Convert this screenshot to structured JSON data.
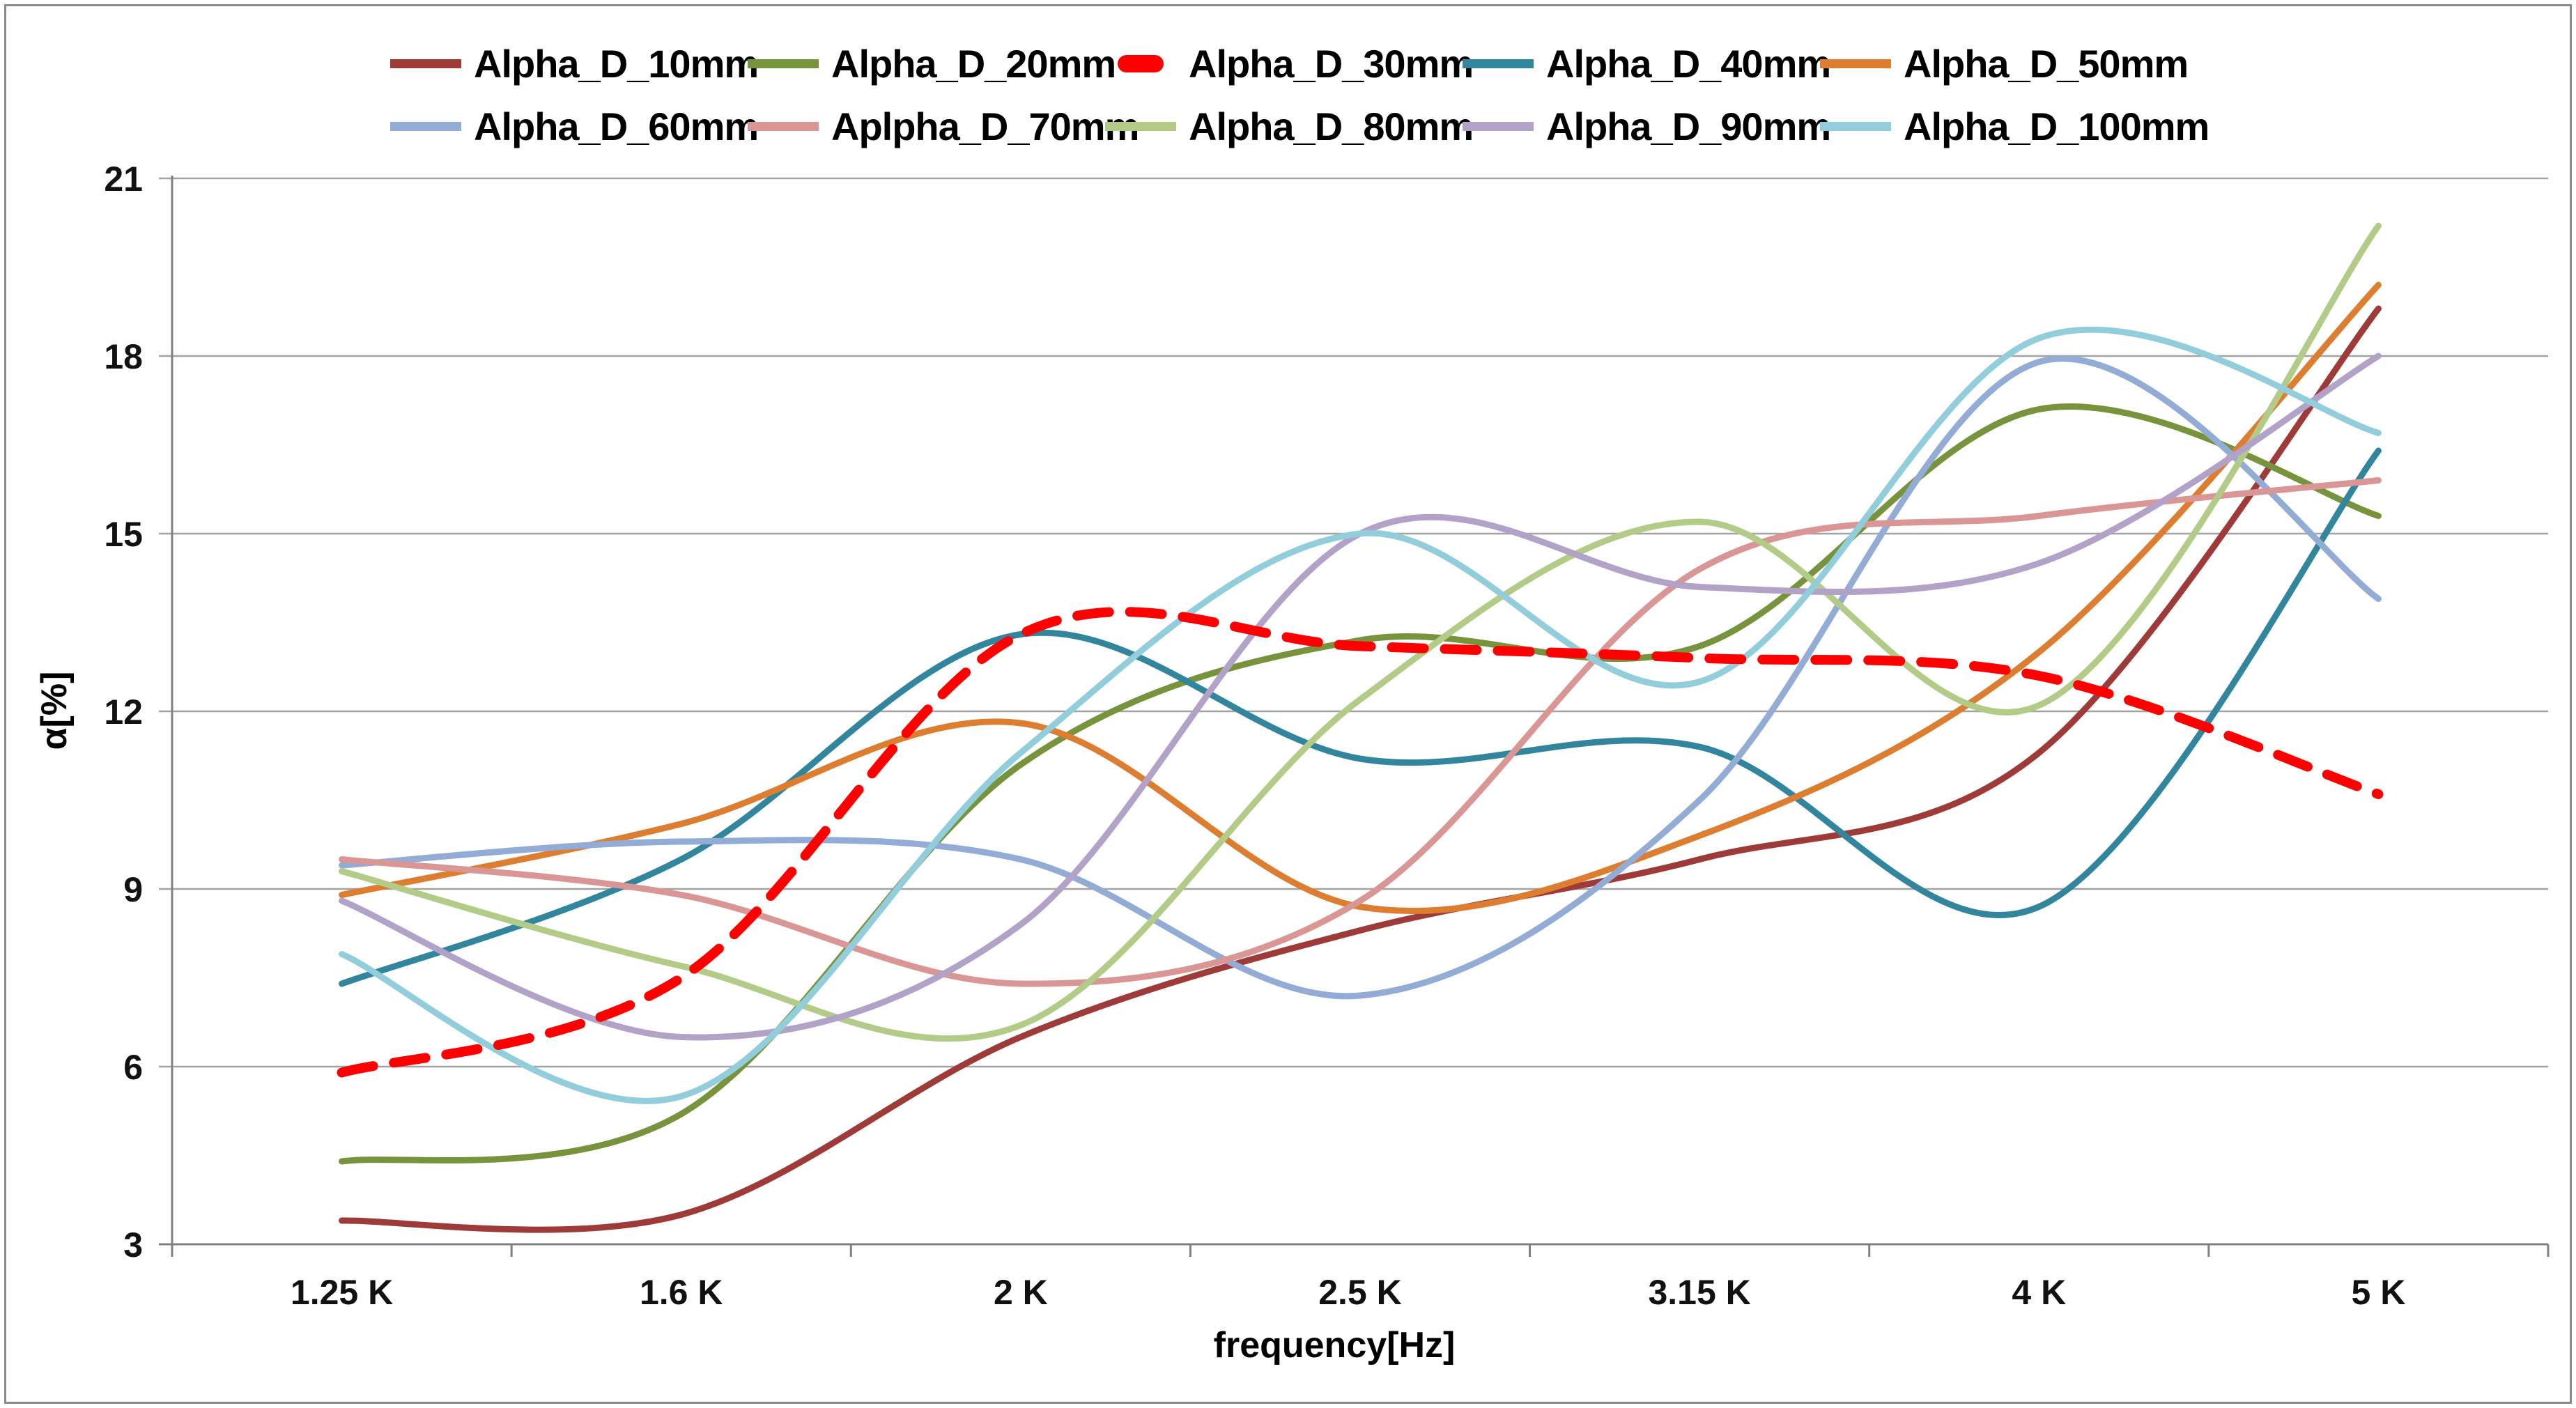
{
  "chart_data": {
    "type": "line",
    "title": "",
    "xlabel": "frequency[Hz]",
    "ylabel": "α[%]",
    "categories": [
      "1.25 K",
      "1.6 K",
      "2 K",
      "2.5 K",
      "3.15 K",
      "4 K",
      "5 K"
    ],
    "yticks": [
      3,
      6,
      9,
      12,
      15,
      18,
      21
    ],
    "ylim": [
      3,
      21
    ],
    "grid": "horizontal",
    "legend_position": "top-two-rows",
    "line_style_note": "smoothed curves; Alpha_D_30mm drawn as thick red dashes",
    "series": [
      {
        "name": "Alpha_D_10mm",
        "color": "#9E3B38",
        "style": "solid",
        "values": [
          3.4,
          3.5,
          6.5,
          8.3,
          9.5,
          11.3,
          18.8
        ]
      },
      {
        "name": "Alpha_D_20mm",
        "color": "#77933C",
        "style": "solid",
        "values": [
          4.4,
          5.2,
          11.1,
          13.2,
          13.1,
          17.1,
          15.3
        ]
      },
      {
        "name": "Alpha_D_30mm",
        "color": "#FF0000",
        "style": "dashed",
        "values": [
          5.9,
          7.5,
          13.3,
          13.1,
          12.9,
          12.6,
          10.6
        ]
      },
      {
        "name": "Alpha_D_40mm",
        "color": "#31859C",
        "style": "solid",
        "values": [
          7.4,
          9.5,
          13.3,
          11.2,
          11.4,
          8.7,
          16.4
        ]
      },
      {
        "name": "Alpha_D_50mm",
        "color": "#DC7D2F",
        "style": "solid",
        "values": [
          8.9,
          10.1,
          11.8,
          8.7,
          9.9,
          13.0,
          19.2
        ]
      },
      {
        "name": "Alpha_D_60mm",
        "color": "#92ACD5",
        "style": "solid",
        "values": [
          9.4,
          9.8,
          9.5,
          7.2,
          10.5,
          17.9,
          13.9
        ]
      },
      {
        "name": "Aplpha_D_70mm",
        "color": "#D99694",
        "style": "solid",
        "values": [
          9.5,
          8.9,
          7.4,
          8.8,
          14.4,
          15.3,
          15.9
        ]
      },
      {
        "name": "Alpha_D_80mm",
        "color": "#B2CB87",
        "style": "solid",
        "values": [
          9.3,
          7.7,
          6.7,
          12.2,
          15.2,
          12.1,
          20.2
        ]
      },
      {
        "name": "Alpha_D_90mm",
        "color": "#B2A2C7",
        "style": "solid",
        "values": [
          8.8,
          6.5,
          8.4,
          15.0,
          14.1,
          14.5,
          18.0
        ]
      },
      {
        "name": "Alpha_D_100mm",
        "color": "#92CDDC",
        "style": "solid",
        "values": [
          7.9,
          5.5,
          11.3,
          15.0,
          12.5,
          18.3,
          16.7
        ]
      }
    ]
  },
  "colors": {
    "gridline": "#A3A3A3",
    "axis": "#808080",
    "frame": "#8A8A8A",
    "background": "#FFFFFF",
    "text": "#000000"
  }
}
